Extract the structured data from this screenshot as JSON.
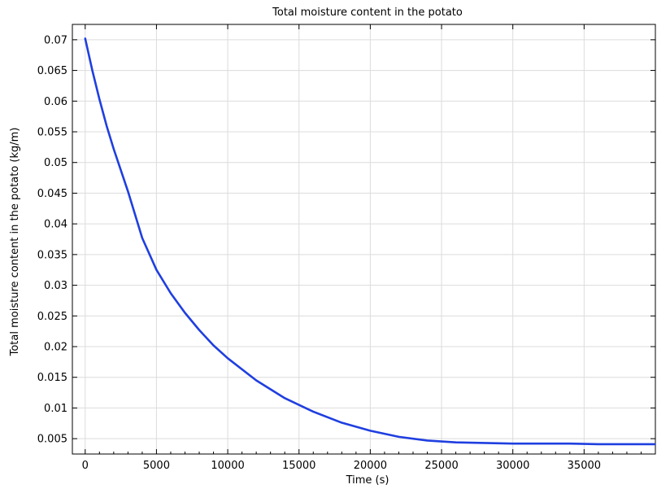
{
  "chart_data": {
    "type": "line",
    "title": "Total moisture content in the potato",
    "xlabel": "Time (s)",
    "ylabel": "Total moisture content in the potato (kg/m)",
    "xlim": [
      -900,
      40000
    ],
    "ylim": [
      0.0025,
      0.0725
    ],
    "x_ticks": [
      0,
      5000,
      10000,
      15000,
      20000,
      25000,
      30000,
      35000
    ],
    "x_tick_labels": [
      "0",
      "5000",
      "10000",
      "15000",
      "20000",
      "25000",
      "30000",
      "35000"
    ],
    "y_ticks": [
      0.005,
      0.01,
      0.015,
      0.02,
      0.025,
      0.03,
      0.035,
      0.04,
      0.045,
      0.05,
      0.055,
      0.06,
      0.065,
      0.07
    ],
    "y_tick_labels": [
      "0.005",
      "0.01",
      "0.015",
      "0.02",
      "0.025",
      "0.03",
      "0.035",
      "0.04",
      "0.045",
      "0.05",
      "0.055",
      "0.06",
      "0.065",
      "0.07"
    ],
    "grid": true,
    "legend": "none",
    "series": [
      {
        "color": "#1f3fe0",
        "x": [
          0,
          500,
          1000,
          1500,
          2000,
          3000,
          4000,
          5000,
          6000,
          7000,
          8000,
          9000,
          10000,
          12000,
          14000,
          16000,
          18000,
          20000,
          22000,
          24000,
          26000,
          28000,
          30000,
          32000,
          34000,
          36000,
          38000,
          40000
        ],
        "y": [
          0.0702,
          0.065,
          0.0603,
          0.056,
          0.0522,
          0.0453,
          0.0377,
          0.0325,
          0.0287,
          0.0255,
          0.0227,
          0.0202,
          0.0181,
          0.0145,
          0.0116,
          0.0094,
          0.0076,
          0.0063,
          0.0053,
          0.0047,
          0.0044,
          0.0043,
          0.0042,
          0.0042,
          0.0042,
          0.0041,
          0.0041,
          0.0041
        ]
      }
    ]
  }
}
